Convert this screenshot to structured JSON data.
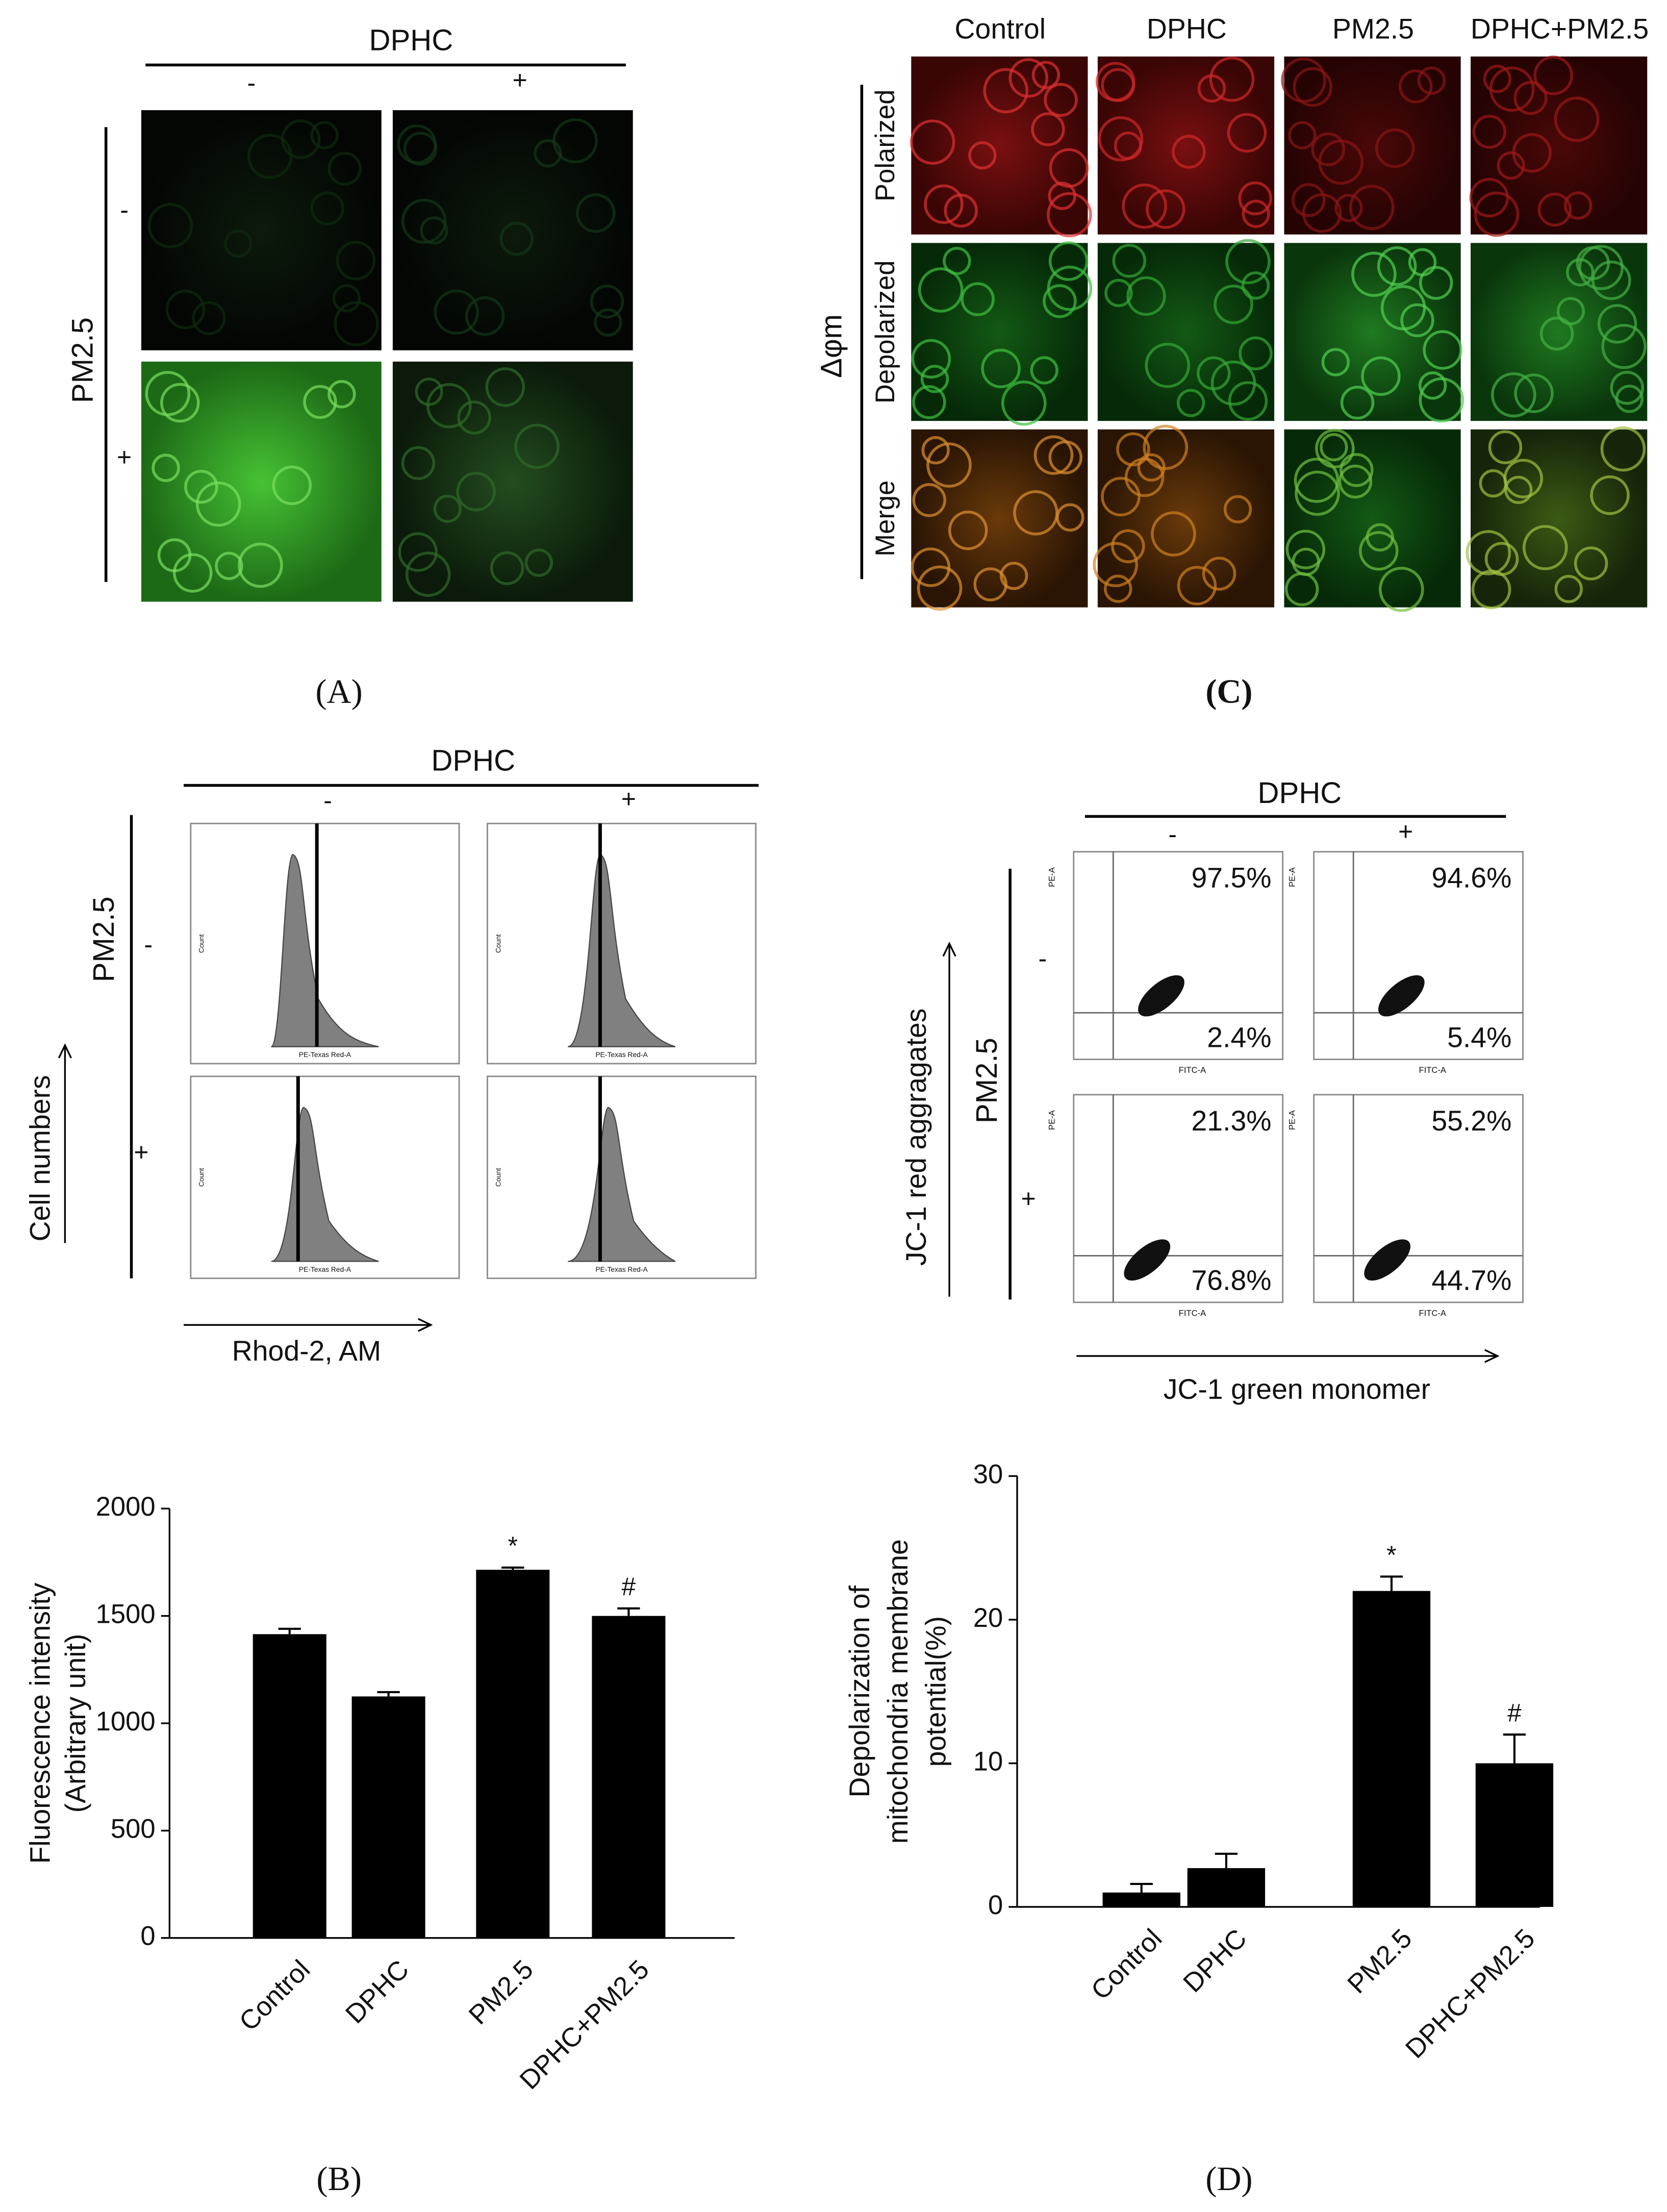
{
  "chart_data": [
    {
      "type": "bar",
      "categories": [
        "Control",
        "DPHC",
        "PM2.5",
        "DPHC+PM2.5"
      ],
      "values": [
        1415,
        1125,
        1715,
        1500
      ],
      "errors": [
        25,
        20,
        10,
        35
      ],
      "marks": [
        null,
        null,
        "*",
        "#"
      ],
      "color": "#000000",
      "ylabel": [
        "Fluorescence intensity",
        "(Arbitrary unit)"
      ],
      "ylim": [
        0,
        2000
      ],
      "yticks": [
        0,
        500,
        1000,
        1500,
        2000
      ]
    },
    {
      "type": "bar",
      "categories": [
        "Control",
        "DPHC",
        "PM2.5",
        "DPHC+PM2.5"
      ],
      "values": [
        1,
        2.7,
        22,
        10
      ],
      "errors": [
        0.6,
        1,
        1,
        2
      ],
      "marks": [
        null,
        null,
        "*",
        "#"
      ],
      "color": "#000000",
      "ylabel": [
        "Depolarization of",
        "mitochondria membrane",
        "potential(%)"
      ],
      "ylim": [
        0,
        30
      ],
      "yticks": [
        0,
        10,
        20,
        30
      ]
    }
  ],
  "panels": {
    "A": {
      "caption": "(A)",
      "column_title": "DPHC",
      "columns": [
        "-",
        "+"
      ],
      "row_title": "PM2.5",
      "rows": [
        "-",
        "+"
      ]
    },
    "C": {
      "caption": "(C)",
      "columns": [
        "Control",
        "DPHC",
        "PM2.5",
        "DPHC+PM2.5"
      ],
      "rows": [
        "Polarized",
        "Depolarized",
        "Merge"
      ],
      "side_label": "Δφm"
    },
    "B": {
      "caption": "(B)",
      "column_title": "DPHC",
      "columns": [
        "-",
        "+"
      ],
      "row_title": "PM2.5",
      "rows": [
        "-",
        "+"
      ],
      "ylabel": "Cell numbers",
      "xlabel": "Rhod-2, AM",
      "axis_text": {
        "x": "PE-Texas Red-A",
        "y": "Count"
      }
    },
    "D": {
      "caption": "(D)",
      "column_title": "DPHC",
      "columns": [
        "-",
        "+"
      ],
      "row_title": "PM2.5",
      "rows": [
        "-",
        "+"
      ],
      "ylabel": "JC-1 red aggragates",
      "xlabel": "JC-1 green monomer",
      "axis_text": {
        "x": "FITC-A",
        "y": "PE-A"
      },
      "quadrants": [
        [
          "97.5%",
          "2.4%"
        ],
        [
          "94.6%",
          "5.4%"
        ],
        [
          "21.3%",
          "76.8%"
        ],
        [
          "55.2%",
          "44.7%"
        ]
      ]
    }
  }
}
